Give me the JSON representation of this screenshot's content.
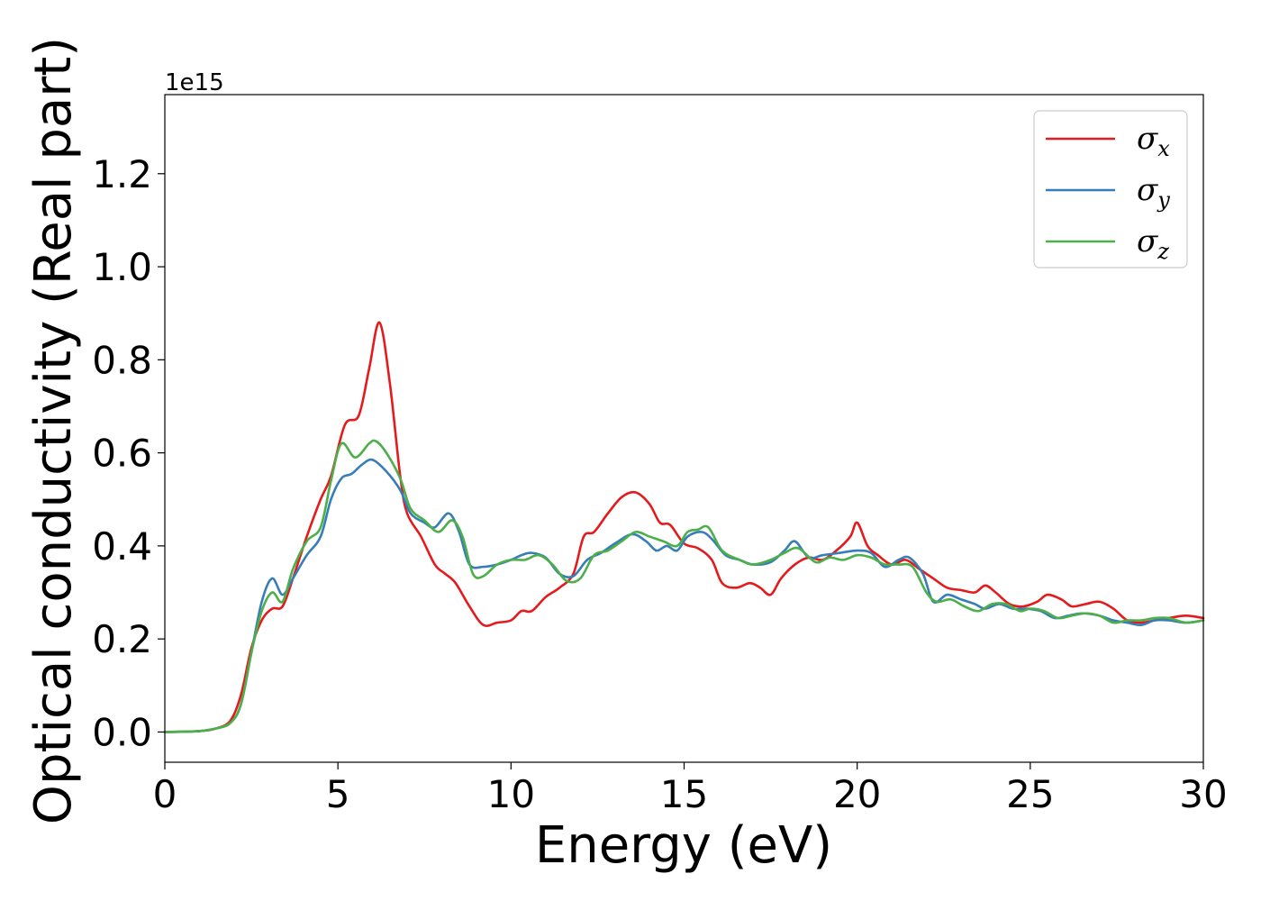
{
  "chart_data": {
    "type": "line",
    "xlabel": "Energy (eV)",
    "ylabel": "Optical conductivity (Real part)",
    "y_offset_label": "1e15",
    "xlim": [
      0,
      30
    ],
    "ylim": [
      -0.065,
      1.37
    ],
    "x_ticks": [
      0,
      5,
      10,
      15,
      20,
      25,
      30
    ],
    "x_tick_labels": [
      "0",
      "5",
      "10",
      "15",
      "20",
      "25",
      "30"
    ],
    "y_ticks": [
      0.0,
      0.2,
      0.4,
      0.6,
      0.8,
      1.0,
      1.2
    ],
    "y_tick_labels": [
      "0.0",
      "0.2",
      "0.4",
      "0.6",
      "0.8",
      "1.0",
      "1.2"
    ],
    "grid": false,
    "legend_position": "top-right",
    "series": [
      {
        "name": "σx",
        "legend_symbol": "σ",
        "legend_subscript": "x",
        "color": "#e41a1c",
        "points": [
          [
            0,
            0
          ],
          [
            1,
            0.002
          ],
          [
            1.5,
            0.008
          ],
          [
            1.9,
            0.025
          ],
          [
            2.2,
            0.08
          ],
          [
            2.5,
            0.18
          ],
          [
            2.8,
            0.24
          ],
          [
            3.1,
            0.265
          ],
          [
            3.4,
            0.27
          ],
          [
            3.7,
            0.33
          ],
          [
            4.1,
            0.42
          ],
          [
            4.5,
            0.5
          ],
          [
            4.8,
            0.55
          ],
          [
            5.2,
            0.66
          ],
          [
            5.6,
            0.68
          ],
          [
            5.9,
            0.78
          ],
          [
            6.2,
            0.88
          ],
          [
            6.5,
            0.75
          ],
          [
            6.8,
            0.55
          ],
          [
            7.0,
            0.47
          ],
          [
            7.4,
            0.42
          ],
          [
            7.8,
            0.36
          ],
          [
            8.1,
            0.34
          ],
          [
            8.4,
            0.32
          ],
          [
            8.8,
            0.27
          ],
          [
            9.2,
            0.23
          ],
          [
            9.6,
            0.235
          ],
          [
            10.0,
            0.24
          ],
          [
            10.3,
            0.26
          ],
          [
            10.6,
            0.26
          ],
          [
            11.0,
            0.29
          ],
          [
            11.4,
            0.31
          ],
          [
            11.8,
            0.34
          ],
          [
            12.1,
            0.42
          ],
          [
            12.4,
            0.43
          ],
          [
            12.8,
            0.47
          ],
          [
            13.2,
            0.505
          ],
          [
            13.6,
            0.515
          ],
          [
            14.0,
            0.49
          ],
          [
            14.3,
            0.45
          ],
          [
            14.6,
            0.445
          ],
          [
            15.0,
            0.405
          ],
          [
            15.4,
            0.395
          ],
          [
            15.8,
            0.37
          ],
          [
            16.1,
            0.32
          ],
          [
            16.5,
            0.31
          ],
          [
            16.9,
            0.32
          ],
          [
            17.2,
            0.31
          ],
          [
            17.5,
            0.295
          ],
          [
            17.8,
            0.33
          ],
          [
            18.2,
            0.36
          ],
          [
            18.6,
            0.375
          ],
          [
            19.0,
            0.37
          ],
          [
            19.4,
            0.39
          ],
          [
            19.8,
            0.42
          ],
          [
            20.0,
            0.45
          ],
          [
            20.3,
            0.4
          ],
          [
            20.6,
            0.38
          ],
          [
            21.0,
            0.36
          ],
          [
            21.4,
            0.37
          ],
          [
            21.8,
            0.35
          ],
          [
            22.2,
            0.33
          ],
          [
            22.6,
            0.31
          ],
          [
            23.0,
            0.305
          ],
          [
            23.4,
            0.3
          ],
          [
            23.7,
            0.315
          ],
          [
            24.0,
            0.3
          ],
          [
            24.4,
            0.275
          ],
          [
            24.8,
            0.27
          ],
          [
            25.2,
            0.28
          ],
          [
            25.5,
            0.295
          ],
          [
            25.9,
            0.285
          ],
          [
            26.2,
            0.27
          ],
          [
            26.6,
            0.275
          ],
          [
            27.0,
            0.28
          ],
          [
            27.4,
            0.265
          ],
          [
            27.8,
            0.24
          ],
          [
            28.2,
            0.235
          ],
          [
            28.6,
            0.24
          ],
          [
            29.0,
            0.245
          ],
          [
            29.5,
            0.25
          ],
          [
            30.0,
            0.245
          ]
        ]
      },
      {
        "name": "σy",
        "legend_symbol": "σ",
        "legend_subscript": "y",
        "color": "#377eb8",
        "points": [
          [
            0,
            0
          ],
          [
            1,
            0.002
          ],
          [
            1.5,
            0.008
          ],
          [
            1.9,
            0.02
          ],
          [
            2.2,
            0.06
          ],
          [
            2.5,
            0.17
          ],
          [
            2.8,
            0.28
          ],
          [
            3.1,
            0.33
          ],
          [
            3.4,
            0.295
          ],
          [
            3.7,
            0.33
          ],
          [
            4.1,
            0.38
          ],
          [
            4.5,
            0.42
          ],
          [
            4.8,
            0.5
          ],
          [
            5.1,
            0.545
          ],
          [
            5.4,
            0.555
          ],
          [
            5.7,
            0.575
          ],
          [
            6.0,
            0.585
          ],
          [
            6.4,
            0.56
          ],
          [
            6.8,
            0.52
          ],
          [
            7.1,
            0.47
          ],
          [
            7.5,
            0.45
          ],
          [
            7.8,
            0.44
          ],
          [
            8.2,
            0.47
          ],
          [
            8.5,
            0.43
          ],
          [
            8.8,
            0.36
          ],
          [
            9.2,
            0.355
          ],
          [
            9.6,
            0.36
          ],
          [
            10.0,
            0.37
          ],
          [
            10.3,
            0.38
          ],
          [
            10.6,
            0.385
          ],
          [
            11.0,
            0.375
          ],
          [
            11.4,
            0.34
          ],
          [
            11.8,
            0.335
          ],
          [
            12.2,
            0.37
          ],
          [
            12.6,
            0.385
          ],
          [
            13.0,
            0.405
          ],
          [
            13.5,
            0.425
          ],
          [
            13.9,
            0.41
          ],
          [
            14.2,
            0.39
          ],
          [
            14.5,
            0.4
          ],
          [
            14.8,
            0.39
          ],
          [
            15.1,
            0.42
          ],
          [
            15.5,
            0.43
          ],
          [
            15.8,
            0.415
          ],
          [
            16.2,
            0.38
          ],
          [
            16.6,
            0.37
          ],
          [
            17.0,
            0.36
          ],
          [
            17.5,
            0.365
          ],
          [
            17.9,
            0.39
          ],
          [
            18.2,
            0.41
          ],
          [
            18.6,
            0.375
          ],
          [
            19.0,
            0.38
          ],
          [
            19.5,
            0.385
          ],
          [
            20.0,
            0.39
          ],
          [
            20.4,
            0.385
          ],
          [
            20.8,
            0.355
          ],
          [
            21.2,
            0.37
          ],
          [
            21.5,
            0.375
          ],
          [
            21.9,
            0.34
          ],
          [
            22.2,
            0.28
          ],
          [
            22.6,
            0.295
          ],
          [
            23.0,
            0.285
          ],
          [
            23.4,
            0.275
          ],
          [
            23.7,
            0.265
          ],
          [
            24.1,
            0.275
          ],
          [
            24.5,
            0.265
          ],
          [
            24.9,
            0.265
          ],
          [
            25.3,
            0.26
          ],
          [
            25.7,
            0.245
          ],
          [
            26.1,
            0.25
          ],
          [
            26.5,
            0.255
          ],
          [
            27.0,
            0.25
          ],
          [
            27.4,
            0.24
          ],
          [
            27.8,
            0.235
          ],
          [
            28.2,
            0.23
          ],
          [
            28.6,
            0.24
          ],
          [
            29.0,
            0.24
          ],
          [
            29.5,
            0.235
          ],
          [
            30.0,
            0.24
          ]
        ]
      },
      {
        "name": "σz",
        "legend_symbol": "σ",
        "legend_subscript": "z",
        "color": "#4daf4a",
        "points": [
          [
            0,
            0
          ],
          [
            1,
            0.002
          ],
          [
            1.5,
            0.008
          ],
          [
            1.9,
            0.02
          ],
          [
            2.2,
            0.06
          ],
          [
            2.5,
            0.17
          ],
          [
            2.8,
            0.26
          ],
          [
            3.1,
            0.3
          ],
          [
            3.4,
            0.28
          ],
          [
            3.7,
            0.35
          ],
          [
            4.1,
            0.41
          ],
          [
            4.5,
            0.44
          ],
          [
            4.8,
            0.54
          ],
          [
            5.1,
            0.62
          ],
          [
            5.5,
            0.59
          ],
          [
            5.9,
            0.62
          ],
          [
            6.1,
            0.625
          ],
          [
            6.4,
            0.6
          ],
          [
            6.8,
            0.545
          ],
          [
            7.1,
            0.48
          ],
          [
            7.5,
            0.455
          ],
          [
            7.9,
            0.43
          ],
          [
            8.3,
            0.455
          ],
          [
            8.6,
            0.42
          ],
          [
            8.9,
            0.34
          ],
          [
            9.2,
            0.335
          ],
          [
            9.6,
            0.36
          ],
          [
            10.0,
            0.37
          ],
          [
            10.4,
            0.37
          ],
          [
            10.8,
            0.38
          ],
          [
            11.2,
            0.36
          ],
          [
            11.6,
            0.325
          ],
          [
            12.0,
            0.33
          ],
          [
            12.4,
            0.38
          ],
          [
            12.8,
            0.39
          ],
          [
            13.2,
            0.41
          ],
          [
            13.6,
            0.43
          ],
          [
            14.0,
            0.42
          ],
          [
            14.4,
            0.41
          ],
          [
            14.8,
            0.4
          ],
          [
            15.1,
            0.43
          ],
          [
            15.4,
            0.435
          ],
          [
            15.7,
            0.44
          ],
          [
            16.1,
            0.39
          ],
          [
            16.6,
            0.37
          ],
          [
            17.0,
            0.36
          ],
          [
            17.5,
            0.37
          ],
          [
            17.9,
            0.385
          ],
          [
            18.3,
            0.395
          ],
          [
            18.8,
            0.365
          ],
          [
            19.2,
            0.375
          ],
          [
            19.6,
            0.37
          ],
          [
            20.0,
            0.38
          ],
          [
            20.4,
            0.375
          ],
          [
            20.8,
            0.36
          ],
          [
            21.2,
            0.36
          ],
          [
            21.6,
            0.355
          ],
          [
            22.0,
            0.3
          ],
          [
            22.3,
            0.28
          ],
          [
            22.7,
            0.285
          ],
          [
            23.1,
            0.27
          ],
          [
            23.5,
            0.26
          ],
          [
            23.9,
            0.275
          ],
          [
            24.3,
            0.275
          ],
          [
            24.7,
            0.26
          ],
          [
            25.0,
            0.265
          ],
          [
            25.4,
            0.26
          ],
          [
            25.8,
            0.245
          ],
          [
            26.2,
            0.25
          ],
          [
            26.6,
            0.255
          ],
          [
            27.0,
            0.25
          ],
          [
            27.4,
            0.235
          ],
          [
            27.8,
            0.24
          ],
          [
            28.2,
            0.24
          ],
          [
            28.6,
            0.245
          ],
          [
            29.0,
            0.245
          ],
          [
            29.5,
            0.235
          ],
          [
            30.0,
            0.24
          ]
        ]
      }
    ]
  }
}
